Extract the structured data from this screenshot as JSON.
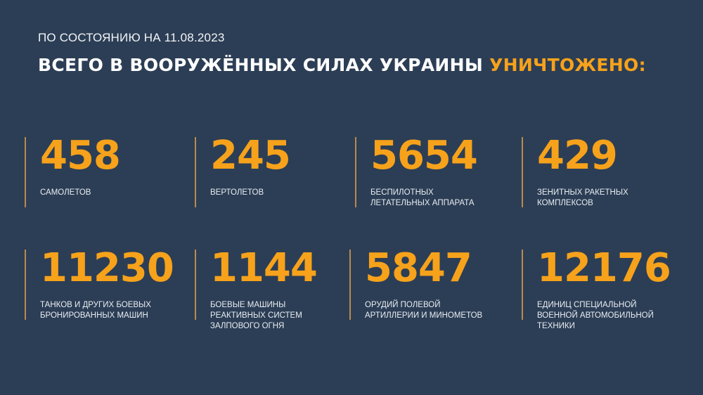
{
  "header": {
    "date_line": "ПО СОСТОЯНИЮ НА 11.08.2023",
    "title_main": "ВСЕГО В ВООРУЖЁННЫХ СИЛАХ УКРАИНЫ ",
    "title_highlight": "УНИЧТОЖЕНО:"
  },
  "colors": {
    "background": "#2c3e55",
    "accent": "#f7a21b",
    "text": "#ffffff"
  },
  "stats": [
    {
      "value": "458",
      "label": "САМОЛЕТОВ"
    },
    {
      "value": "245",
      "label": "ВЕРТОЛЕТОВ"
    },
    {
      "value": "5654",
      "label": "БЕСПИЛОТНЫХ\nЛЕТАТЕЛЬНЫХ АППАРАТА"
    },
    {
      "value": "429",
      "label": "ЗЕНИТНЫХ РАКЕТНЫХ\nКОМПЛЕКСОВ"
    },
    {
      "value": "11230",
      "label": "ТАНКОВ И ДРУГИХ БОЕВЫХ\nБРОНИРОВАННЫХ МАШИН"
    },
    {
      "value": "1144",
      "label": "БОЕВЫЕ МАШИНЫ\nРЕАКТИВНЫХ СИСТЕМ\nЗАЛПОВОГО ОГНЯ"
    },
    {
      "value": "5847",
      "label": "ОРУДИЙ ПОЛЕВОЙ\nАРТИЛЛЕРИИ И МИНОМЕТОВ"
    },
    {
      "value": "12176",
      "label": "ЕДИНИЦ СПЕЦИАЛЬНОЙ\nВОЕННОЙ АВТОМОБИЛЬНОЙ\nТЕХНИКИ"
    }
  ]
}
